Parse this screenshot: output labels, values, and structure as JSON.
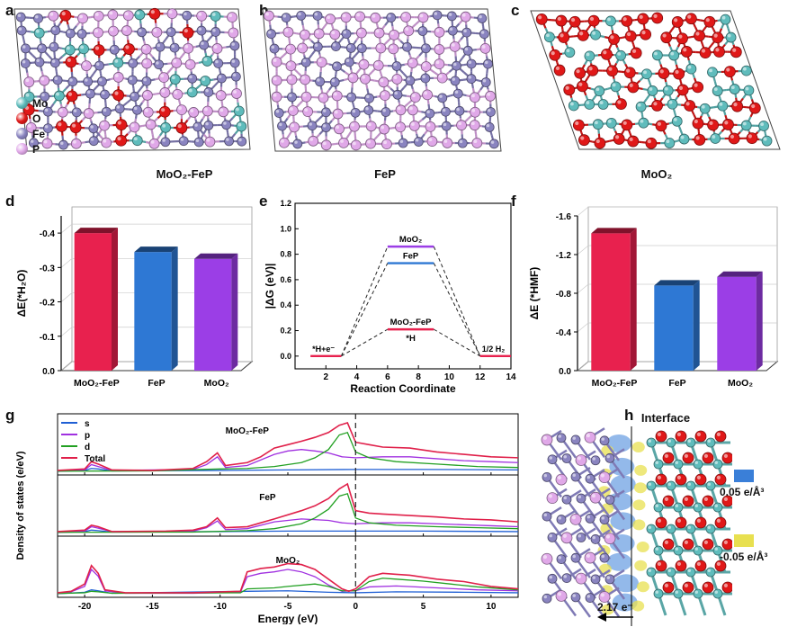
{
  "panel_labels": {
    "a": "a",
    "b": "b",
    "c": "c",
    "d": "d",
    "e": "e",
    "f": "f",
    "g": "g",
    "h": "h"
  },
  "structures": {
    "a": {
      "caption": "MoO₂-FeP"
    },
    "b": {
      "caption": "FeP"
    },
    "c": {
      "caption": "MoO₂"
    },
    "legend": [
      {
        "symbol": "Mo",
        "color": "#5fbcbc"
      },
      {
        "symbol": "O",
        "color": "#e01818"
      },
      {
        "symbol": "Fe",
        "color": "#8a84c0"
      },
      {
        "symbol": "P",
        "color": "#e0a8e8"
      }
    ]
  },
  "interface": {
    "title": "Interface",
    "charge": "2.17 e⁻",
    "legend": [
      {
        "label": "0.05 e/Å³",
        "color": "#3a7fd8"
      },
      {
        "label": "-0.05 e/Å³",
        "color": "#e8e050"
      }
    ]
  },
  "colors": {
    "red": "#e8214e",
    "blue": "#2e78d4",
    "purple": "#9b3ee6",
    "green": "#1a9a1a",
    "s": "#1f5fd4",
    "p": "#a030e0",
    "d": "#22a022",
    "total": "#e0204a"
  },
  "chart_data": [
    {
      "panel": "d",
      "type": "bar",
      "categories": [
        "MoO₂-FeP",
        "FeP",
        "MoO₂"
      ],
      "values": [
        -0.4,
        -0.345,
        -0.325
      ],
      "ylabel": "ΔE(*H₂O)",
      "ylim": [
        0,
        -0.45
      ],
      "yticks": [
        "0.0",
        "-0.1",
        "-0.2",
        "-0.3",
        "-0.4"
      ],
      "ytick_values": [
        0,
        -0.1,
        -0.2,
        -0.3,
        -0.4
      ]
    },
    {
      "panel": "e",
      "type": "line",
      "xlabel": "Reaction Coordinate",
      "ylabel": "|ΔG (eV)|",
      "xlim": [
        0,
        14
      ],
      "ylim": [
        -0.1,
        1.2
      ],
      "xticks": [
        "2",
        "4",
        "6",
        "8",
        "10",
        "12",
        "14"
      ],
      "xtick_values": [
        2,
        4,
        6,
        8,
        10,
        12,
        14
      ],
      "yticks": [
        "0.0",
        "0.2",
        "0.4",
        "0.6",
        "0.8",
        "1.0",
        "1.2"
      ],
      "ytick_values": [
        0,
        0.2,
        0.4,
        0.6,
        0.8,
        1.0,
        1.2
      ],
      "states": [
        {
          "label": "*H+e⁻",
          "x": [
            1,
            3
          ],
          "y": 0.0
        },
        {
          "label": "1/2 H₂",
          "x": [
            12,
            14
          ],
          "y": 0.0
        }
      ],
      "intermediate_label": "*H",
      "series": [
        {
          "name": "MoO₂",
          "x": [
            6,
            9
          ],
          "y": 0.86,
          "color": "#9b3ee6"
        },
        {
          "name": "FeP",
          "x": [
            6,
            9
          ],
          "y": 0.73,
          "color": "#2e78d4"
        },
        {
          "name": "MoO₂-FeP",
          "x": [
            6,
            9
          ],
          "y": 0.21,
          "color": "#e8214e"
        }
      ]
    },
    {
      "panel": "f",
      "type": "bar",
      "categories": [
        "MoO₂-FeP",
        "FeP",
        "MoO₂"
      ],
      "values": [
        -1.42,
        -0.88,
        -0.97
      ],
      "ylabel": "ΔE (*HMF)",
      "ylim": [
        0,
        -1.6
      ],
      "yticks": [
        "0.0",
        "-0.4",
        "-0.8",
        "-1.2",
        "-1.6"
      ],
      "ytick_values": [
        0,
        -0.4,
        -0.8,
        -1.2,
        -1.6
      ]
    },
    {
      "panel": "g",
      "type": "line",
      "xlabel": "Energy (eV)",
      "ylabel": "Density of states (e/eV)",
      "xlim": [
        -22,
        12
      ],
      "xticks": [
        "-20",
        "-15",
        "-10",
        "-5",
        "0",
        "5",
        "10"
      ],
      "xtick_values": [
        -20,
        -15,
        -10,
        -5,
        0,
        5,
        10
      ],
      "legend": [
        "s",
        "p",
        "d",
        "Total"
      ],
      "subpanels": [
        {
          "name": "MoO₂-FeP",
          "Total": [
            [
              -22,
              0.02
            ],
            [
              -20,
              0.05
            ],
            [
              -19.5,
              0.2
            ],
            [
              -19,
              0.15
            ],
            [
              -18,
              0.03
            ],
            [
              -15,
              0.02
            ],
            [
              -12,
              0.06
            ],
            [
              -11,
              0.2
            ],
            [
              -10.2,
              0.38
            ],
            [
              -9.6,
              0.12
            ],
            [
              -8,
              0.18
            ],
            [
              -7,
              0.3
            ],
            [
              -6,
              0.48
            ],
            [
              -5,
              0.55
            ],
            [
              -4,
              0.62
            ],
            [
              -3,
              0.7
            ],
            [
              -2,
              0.8
            ],
            [
              -1.2,
              0.95
            ],
            [
              -0.6,
              1.0
            ],
            [
              0,
              0.6
            ],
            [
              1,
              0.55
            ],
            [
              2,
              0.5
            ],
            [
              4,
              0.48
            ],
            [
              6,
              0.4
            ],
            [
              8,
              0.35
            ],
            [
              10,
              0.3
            ],
            [
              12,
              0.28
            ]
          ],
          "p": [
            [
              -22,
              0.01
            ],
            [
              -20,
              0.03
            ],
            [
              -19.5,
              0.14
            ],
            [
              -19,
              0.1
            ],
            [
              -18,
              0.02
            ],
            [
              -12,
              0.04
            ],
            [
              -11,
              0.14
            ],
            [
              -10.2,
              0.3
            ],
            [
              -9.6,
              0.08
            ],
            [
              -8,
              0.12
            ],
            [
              -6,
              0.35
            ],
            [
              -5,
              0.42
            ],
            [
              -4,
              0.45
            ],
            [
              -3,
              0.42
            ],
            [
              -2,
              0.38
            ],
            [
              -1,
              0.3
            ],
            [
              0,
              0.28
            ],
            [
              2,
              0.3
            ],
            [
              4,
              0.3
            ],
            [
              6,
              0.26
            ],
            [
              8,
              0.22
            ],
            [
              10,
              0.2
            ],
            [
              12,
              0.18
            ]
          ],
          "d": [
            [
              -22,
              0.005
            ],
            [
              -15,
              0.01
            ],
            [
              -10,
              0.05
            ],
            [
              -8,
              0.06
            ],
            [
              -6,
              0.1
            ],
            [
              -4,
              0.18
            ],
            [
              -3,
              0.28
            ],
            [
              -2,
              0.45
            ],
            [
              -1.2,
              0.75
            ],
            [
              -0.6,
              0.8
            ],
            [
              0,
              0.4
            ],
            [
              1,
              0.28
            ],
            [
              3,
              0.2
            ],
            [
              6,
              0.15
            ],
            [
              9,
              0.1
            ],
            [
              12,
              0.08
            ]
          ],
          "s": [
            [
              -22,
              0.0
            ],
            [
              -20,
              0.02
            ],
            [
              -19.5,
              0.06
            ],
            [
              -19,
              0.05
            ],
            [
              -18,
              0.01
            ],
            [
              -10,
              0.02
            ],
            [
              -5,
              0.03
            ],
            [
              0,
              0.04
            ],
            [
              5,
              0.04
            ],
            [
              12,
              0.03
            ]
          ]
        },
        {
          "name": "FeP",
          "Total": [
            [
              -22,
              0.02
            ],
            [
              -20,
              0.05
            ],
            [
              -19.5,
              0.15
            ],
            [
              -19,
              0.12
            ],
            [
              -18,
              0.02
            ],
            [
              -14,
              0.03
            ],
            [
              -12,
              0.05
            ],
            [
              -11,
              0.12
            ],
            [
              -10.2,
              0.3
            ],
            [
              -9.6,
              0.1
            ],
            [
              -8,
              0.12
            ],
            [
              -7,
              0.2
            ],
            [
              -6,
              0.28
            ],
            [
              -4,
              0.45
            ],
            [
              -3,
              0.55
            ],
            [
              -2,
              0.7
            ],
            [
              -1.2,
              0.9
            ],
            [
              -0.6,
              1.0
            ],
            [
              0,
              0.45
            ],
            [
              1,
              0.4
            ],
            [
              2,
              0.38
            ],
            [
              4,
              0.35
            ],
            [
              6,
              0.32
            ],
            [
              8,
              0.28
            ],
            [
              10,
              0.26
            ],
            [
              12,
              0.22
            ]
          ],
          "p": [
            [
              -22,
              0.01
            ],
            [
              -20,
              0.03
            ],
            [
              -19.5,
              0.12
            ],
            [
              -19,
              0.09
            ],
            [
              -18,
              0.02
            ],
            [
              -12,
              0.03
            ],
            [
              -11,
              0.1
            ],
            [
              -10.2,
              0.24
            ],
            [
              -9.6,
              0.06
            ],
            [
              -8,
              0.08
            ],
            [
              -6,
              0.22
            ],
            [
              -4,
              0.28
            ],
            [
              -2,
              0.25
            ],
            [
              -1,
              0.2
            ],
            [
              0,
              0.18
            ],
            [
              2,
              0.2
            ],
            [
              4,
              0.2
            ],
            [
              6,
              0.18
            ],
            [
              8,
              0.16
            ],
            [
              10,
              0.14
            ],
            [
              12,
              0.12
            ]
          ],
          "d": [
            [
              -22,
              0.005
            ],
            [
              -12,
              0.01
            ],
            [
              -8,
              0.04
            ],
            [
              -6,
              0.08
            ],
            [
              -4,
              0.18
            ],
            [
              -3,
              0.3
            ],
            [
              -2,
              0.48
            ],
            [
              -1.2,
              0.75
            ],
            [
              -0.6,
              0.8
            ],
            [
              0,
              0.3
            ],
            [
              1,
              0.2
            ],
            [
              3,
              0.15
            ],
            [
              6,
              0.12
            ],
            [
              9,
              0.1
            ],
            [
              12,
              0.08
            ]
          ],
          "s": [
            [
              -22,
              0.0
            ],
            [
              -20,
              0.02
            ],
            [
              -19.5,
              0.05
            ],
            [
              -19,
              0.04
            ],
            [
              -18,
              0.01
            ],
            [
              -10,
              0.02
            ],
            [
              -5,
              0.03
            ],
            [
              0,
              0.03
            ],
            [
              5,
              0.03
            ],
            [
              12,
              0.02
            ]
          ]
        },
        {
          "name": "MoO₂",
          "Total": [
            [
              -22,
              0.02
            ],
            [
              -21,
              0.05
            ],
            [
              -20,
              0.2
            ],
            [
              -19.5,
              0.58
            ],
            [
              -19,
              0.42
            ],
            [
              -18.5,
              0.08
            ],
            [
              -17,
              0.02
            ],
            [
              -12,
              0.02
            ],
            [
              -8.5,
              0.05
            ],
            [
              -8,
              0.45
            ],
            [
              -7,
              0.52
            ],
            [
              -6,
              0.55
            ],
            [
              -5,
              0.62
            ],
            [
              -4,
              0.6
            ],
            [
              -3,
              0.5
            ],
            [
              -2,
              0.3
            ],
            [
              -1,
              0.1
            ],
            [
              -0.5,
              0.05
            ],
            [
              0,
              0.1
            ],
            [
              1,
              0.35
            ],
            [
              2,
              0.42
            ],
            [
              3,
              0.4
            ],
            [
              4,
              0.38
            ],
            [
              6,
              0.3
            ],
            [
              8,
              0.25
            ],
            [
              10,
              0.15
            ],
            [
              12,
              0.1
            ]
          ],
          "p": [
            [
              -22,
              0.01
            ],
            [
              -21,
              0.04
            ],
            [
              -20,
              0.15
            ],
            [
              -19.5,
              0.5
            ],
            [
              -19,
              0.36
            ],
            [
              -18.5,
              0.06
            ],
            [
              -17,
              0.01
            ],
            [
              -12,
              0.01
            ],
            [
              -8.5,
              0.03
            ],
            [
              -8,
              0.35
            ],
            [
              -7,
              0.42
            ],
            [
              -6,
              0.45
            ],
            [
              -5,
              0.5
            ],
            [
              -4,
              0.45
            ],
            [
              -3,
              0.35
            ],
            [
              -2,
              0.18
            ],
            [
              -1,
              0.05
            ],
            [
              0,
              0.06
            ],
            [
              1,
              0.14
            ],
            [
              3,
              0.16
            ],
            [
              6,
              0.12
            ],
            [
              9,
              0.08
            ],
            [
              12,
              0.06
            ]
          ],
          "d": [
            [
              -22,
              0.005
            ],
            [
              -20,
              0.02
            ],
            [
              -19.5,
              0.05
            ],
            [
              -19,
              0.04
            ],
            [
              -18,
              0.01
            ],
            [
              -8.5,
              0.02
            ],
            [
              -8,
              0.1
            ],
            [
              -6,
              0.12
            ],
            [
              -5,
              0.15
            ],
            [
              -3,
              0.2
            ],
            [
              -2,
              0.15
            ],
            [
              -1,
              0.06
            ],
            [
              0,
              0.06
            ],
            [
              1,
              0.25
            ],
            [
              2,
              0.32
            ],
            [
              3,
              0.3
            ],
            [
              5,
              0.26
            ],
            [
              7,
              0.2
            ],
            [
              9,
              0.14
            ],
            [
              12,
              0.08
            ]
          ],
          "s": [
            [
              -22,
              0.0
            ],
            [
              -20,
              0.03
            ],
            [
              -19.5,
              0.08
            ],
            [
              -19,
              0.06
            ],
            [
              -18,
              0.01
            ],
            [
              -8,
              0.05
            ],
            [
              -5,
              0.06
            ],
            [
              -2,
              0.03
            ],
            [
              0,
              0.02
            ],
            [
              3,
              0.04
            ],
            [
              8,
              0.03
            ],
            [
              12,
              0.02
            ]
          ]
        }
      ]
    }
  ]
}
